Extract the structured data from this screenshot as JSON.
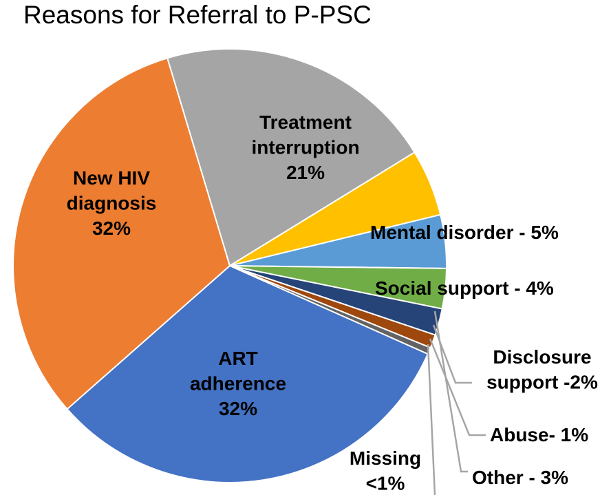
{
  "chart_data": {
    "type": "pie",
    "title": "Reasons for Referral to P-PSC",
    "slices": [
      {
        "lines": [
          "ART",
          "adherence",
          "32%"
        ],
        "value": 32,
        "color": "#4472C4"
      },
      {
        "lines": [
          "New HIV",
          "diagnosis",
          "32%"
        ],
        "value": 32,
        "color": "#ED7D31"
      },
      {
        "lines": [
          "Treatment",
          "interruption",
          "21%"
        ],
        "value": 21,
        "color": "#A5A5A5"
      },
      {
        "lines": [
          "Mental disorder - 5%"
        ],
        "value": 5,
        "color": "#FFC000"
      },
      {
        "lines": [
          "Social support - 4%"
        ],
        "value": 4,
        "color": "#5B9BD5"
      },
      {
        "lines": [
          "Other - 3%"
        ],
        "value": 3,
        "color": "#70AD47"
      },
      {
        "lines": [
          "Disclosure",
          "support -2%"
        ],
        "value": 2,
        "color": "#264478"
      },
      {
        "lines": [
          "Abuse- 1%"
        ],
        "value": 1,
        "color": "#9E480E"
      },
      {
        "lines": [
          "Missing",
          "<1%"
        ],
        "value": 0.5,
        "color": "#636363"
      }
    ]
  }
}
